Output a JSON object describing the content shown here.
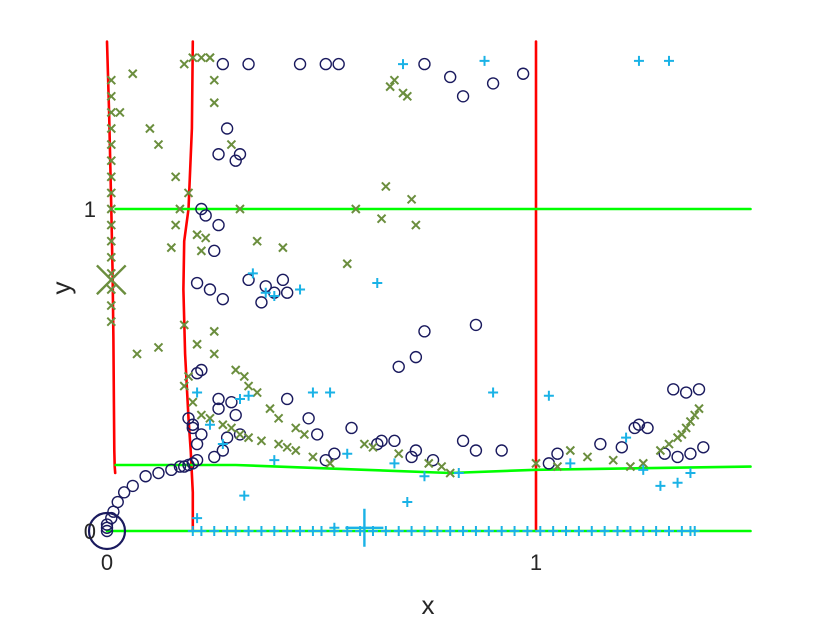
{
  "chart_data": {
    "type": "scatter",
    "xlabel": "x",
    "ylabel": "y",
    "x_ticks": [
      "0",
      "1"
    ],
    "y_ticks": [
      "0",
      "1"
    ],
    "xlim": [
      0,
      1.5
    ],
    "ylim": [
      -0.04,
      1.52
    ],
    "grid": false,
    "colors": {
      "red_curves": "#ff0000",
      "green_curves": "#00ff00",
      "circles": "#1a1a5e",
      "crosses": "#6b8e3e",
      "pluses": "#1ab2e6"
    },
    "curves": [
      {
        "color": "red",
        "x": [
          0.0,
          0.005,
          0.01,
          0.013,
          0.015,
          0.016,
          0.017,
          0.018,
          0.019
        ],
        "y": [
          1.52,
          1.3,
          1.0,
          0.8,
          0.6,
          0.4,
          0.25,
          0.2,
          0.18
        ]
      },
      {
        "color": "red",
        "x": [
          0.2,
          0.198,
          0.19,
          0.18,
          0.178,
          0.182,
          0.19,
          0.195,
          0.2,
          0.2
        ],
        "y": [
          1.52,
          1.25,
          1.0,
          0.9,
          0.75,
          0.55,
          0.35,
          0.25,
          0.12,
          0.0
        ]
      },
      {
        "color": "red",
        "x": [
          1.0,
          1.0,
          1.0,
          1.0,
          1.0,
          1.0
        ],
        "y": [
          1.52,
          1.2,
          1.0,
          0.6,
          0.2,
          0.0
        ]
      },
      {
        "color": "green",
        "x": [
          0.02,
          0.5,
          1.0,
          1.5
        ],
        "y": [
          1.0,
          1.0,
          1.0,
          1.0
        ]
      },
      {
        "color": "green",
        "x": [
          0.02,
          0.3,
          0.6,
          0.8,
          1.0,
          1.5
        ],
        "y": [
          0.205,
          0.205,
          0.19,
          0.18,
          0.19,
          0.2
        ]
      },
      {
        "color": "green",
        "x": [
          0.0,
          0.5,
          1.0,
          1.5
        ],
        "y": [
          0.0,
          0.0,
          0.0,
          0.0
        ]
      }
    ],
    "series": [
      {
        "marker": "circle",
        "x": [
          0.0,
          0.0,
          0.0,
          0.01,
          0.015,
          0.025,
          0.04,
          0.06,
          0.09,
          0.12,
          0.15,
          0.17,
          0.18,
          0.19,
          0.2,
          0.21,
          0.27,
          0.33,
          0.26,
          0.3,
          0.31,
          0.28,
          0.45,
          0.51,
          0.54,
          0.74,
          0.8,
          0.83,
          0.9,
          0.97,
          0.22,
          0.23,
          0.26,
          0.25,
          0.41,
          0.33,
          0.37,
          0.39,
          0.21,
          0.24,
          0.27,
          0.36,
          0.42,
          0.74,
          0.86,
          0.72,
          0.68,
          0.21,
          0.22,
          0.26,
          0.29,
          0.26,
          0.3,
          0.42,
          0.47,
          0.49,
          0.57,
          0.63,
          0.67,
          0.72,
          0.76,
          0.83,
          0.92,
          0.19,
          0.2,
          0.2,
          0.22,
          0.21,
          0.25,
          0.27,
          0.31,
          0.28,
          0.51,
          0.53,
          0.64,
          0.71,
          0.86,
          1.03,
          1.05,
          1.15,
          1.2,
          1.26,
          1.32,
          1.35,
          1.38,
          1.33,
          1.36,
          1.39,
          1.23,
          1.24,
          1.3
        ],
        "y": [
          0.0,
          0.01,
          0.02,
          0.04,
          0.06,
          0.09,
          0.12,
          0.14,
          0.17,
          0.18,
          0.19,
          0.2,
          0.2,
          0.205,
          0.21,
          0.22,
          1.45,
          1.45,
          1.17,
          1.15,
          1.17,
          1.25,
          1.45,
          1.45,
          1.45,
          1.45,
          1.41,
          1.35,
          1.39,
          1.42,
          1.0,
          0.98,
          0.95,
          0.87,
          0.78,
          0.78,
          0.76,
          0.74,
          0.77,
          0.75,
          0.72,
          0.71,
          0.74,
          0.62,
          0.64,
          0.54,
          0.51,
          0.49,
          0.5,
          0.41,
          0.4,
          0.38,
          0.36,
          0.41,
          0.35,
          0.3,
          0.32,
          0.27,
          0.28,
          0.25,
          0.22,
          0.28,
          0.25,
          0.35,
          0.32,
          0.33,
          0.3,
          0.27,
          0.23,
          0.25,
          0.3,
          0.29,
          0.22,
          0.24,
          0.28,
          0.23,
          0.25,
          0.21,
          0.24,
          0.27,
          0.26,
          0.32,
          0.44,
          0.43,
          0.44,
          0.23,
          0.24,
          0.26,
          0.32,
          0.33,
          0.24
        ]
      },
      {
        "marker": "cross",
        "x": [
          0.01,
          0.01,
          0.01,
          0.01,
          0.01,
          0.01,
          0.01,
          0.01,
          0.01,
          0.01,
          0.01,
          0.01,
          0.01,
          0.01,
          0.01,
          0.01,
          0.03,
          0.06,
          0.1,
          0.12,
          0.16,
          0.18,
          0.2,
          0.22,
          0.24,
          0.29,
          0.31,
          0.35,
          0.41,
          0.58,
          0.66,
          0.7,
          0.19,
          0.17,
          0.15,
          0.22,
          0.24,
          0.25,
          0.25,
          0.23,
          0.56,
          0.64,
          0.65,
          0.67,
          0.69,
          0.71,
          0.72,
          0.18,
          0.21,
          0.25,
          0.3,
          0.33,
          0.35,
          0.38,
          0.4,
          0.44,
          0.46,
          0.6,
          0.62,
          0.68,
          0.75,
          0.78,
          0.8,
          0.18,
          0.19,
          0.2,
          0.22,
          0.24,
          0.27,
          0.29,
          0.31,
          0.33,
          0.36,
          0.4,
          0.42,
          0.44,
          0.48,
          0.52,
          1.0,
          1.05,
          1.08,
          1.12,
          1.18,
          1.22,
          1.25,
          1.29,
          1.31,
          1.33,
          1.34,
          1.35,
          1.36,
          1.37,
          1.38,
          0.07,
          0.12,
          0.16,
          0.21,
          0.25,
          0.32
        ],
        "y": [
          1.4,
          1.35,
          1.3,
          1.25,
          1.2,
          1.15,
          1.1,
          1.05,
          1.0,
          0.95,
          0.9,
          0.85,
          0.8,
          0.75,
          0.7,
          0.65,
          1.3,
          1.42,
          1.25,
          1.2,
          1.1,
          1.45,
          1.47,
          1.47,
          1.47,
          1.2,
          1.0,
          0.9,
          0.88,
          1.0,
          1.38,
          1.35,
          1.05,
          1.0,
          0.88,
          0.87,
          1.47,
          1.4,
          1.33,
          0.91,
          0.83,
          0.97,
          1.07,
          1.4,
          1.36,
          1.03,
          0.95,
          0.64,
          0.58,
          0.55,
          0.5,
          0.45,
          0.43,
          0.38,
          0.35,
          0.32,
          0.3,
          0.27,
          0.26,
          0.24,
          0.21,
          0.2,
          0.18,
          0.45,
          0.48,
          0.4,
          0.36,
          0.35,
          0.33,
          0.32,
          0.3,
          0.29,
          0.28,
          0.27,
          0.26,
          0.25,
          0.23,
          0.21,
          0.21,
          0.2,
          0.25,
          0.23,
          0.22,
          0.2,
          0.21,
          0.25,
          0.27,
          0.29,
          0.3,
          0.32,
          0.34,
          0.36,
          0.38,
          0.55,
          0.57,
          0.95,
          0.92,
          0.62,
          0.48
        ]
      },
      {
        "marker": "plus",
        "x": [
          0.2,
          0.22,
          0.25,
          0.28,
          0.3,
          0.33,
          0.36,
          0.39,
          0.42,
          0.45,
          0.48,
          0.5,
          0.53,
          0.56,
          0.59,
          0.62,
          0.65,
          0.68,
          0.71,
          0.74,
          0.77,
          0.8,
          0.83,
          0.86,
          0.89,
          0.92,
          0.95,
          0.98,
          1.01,
          1.04,
          1.07,
          1.1,
          1.13,
          1.16,
          1.19,
          1.22,
          1.25,
          1.28,
          1.31,
          1.34,
          1.36,
          1.37,
          0.53,
          0.69,
          0.88,
          1.24,
          1.31,
          0.34,
          0.63,
          0.45,
          0.37,
          0.39,
          0.21,
          0.24,
          0.27,
          0.32,
          0.39,
          0.56,
          0.67,
          0.74,
          0.82,
          1.03,
          1.08,
          1.21,
          1.25,
          1.33,
          1.36,
          1.29,
          0.31,
          0.33,
          0.48,
          0.52,
          0.9,
          0.7,
          0.21
        ],
        "y": [
          0.0,
          0.0,
          0.0,
          0.0,
          0.0,
          0.0,
          0.0,
          0.0,
          0.0,
          0.0,
          0.0,
          0.0,
          0.0,
          0.0,
          0.0,
          0.0,
          0.0,
          0.0,
          0.0,
          0.0,
          0.0,
          0.0,
          0.0,
          0.0,
          0.0,
          0.0,
          0.0,
          0.0,
          0.0,
          0.0,
          0.0,
          0.0,
          0.0,
          0.0,
          0.0,
          0.0,
          0.0,
          0.0,
          0.0,
          0.0,
          0.0,
          0.0,
          0.01,
          1.45,
          1.46,
          1.46,
          1.46,
          0.8,
          0.77,
          0.75,
          0.74,
          0.73,
          0.43,
          0.33,
          0.27,
          0.11,
          0.22,
          0.24,
          0.21,
          0.17,
          0.18,
          0.42,
          0.21,
          0.29,
          0.19,
          0.15,
          0.18,
          0.14,
          0.41,
          0.42,
          0.43,
          0.43,
          0.43,
          0.09,
          0.04
        ]
      }
    ],
    "large_markers": [
      {
        "marker": "circle",
        "x": 0.0,
        "y": 0.0
      },
      {
        "marker": "cross",
        "x": 0.01,
        "y": 0.78
      },
      {
        "marker": "plus",
        "x": 0.6,
        "y": 0.01
      }
    ]
  }
}
